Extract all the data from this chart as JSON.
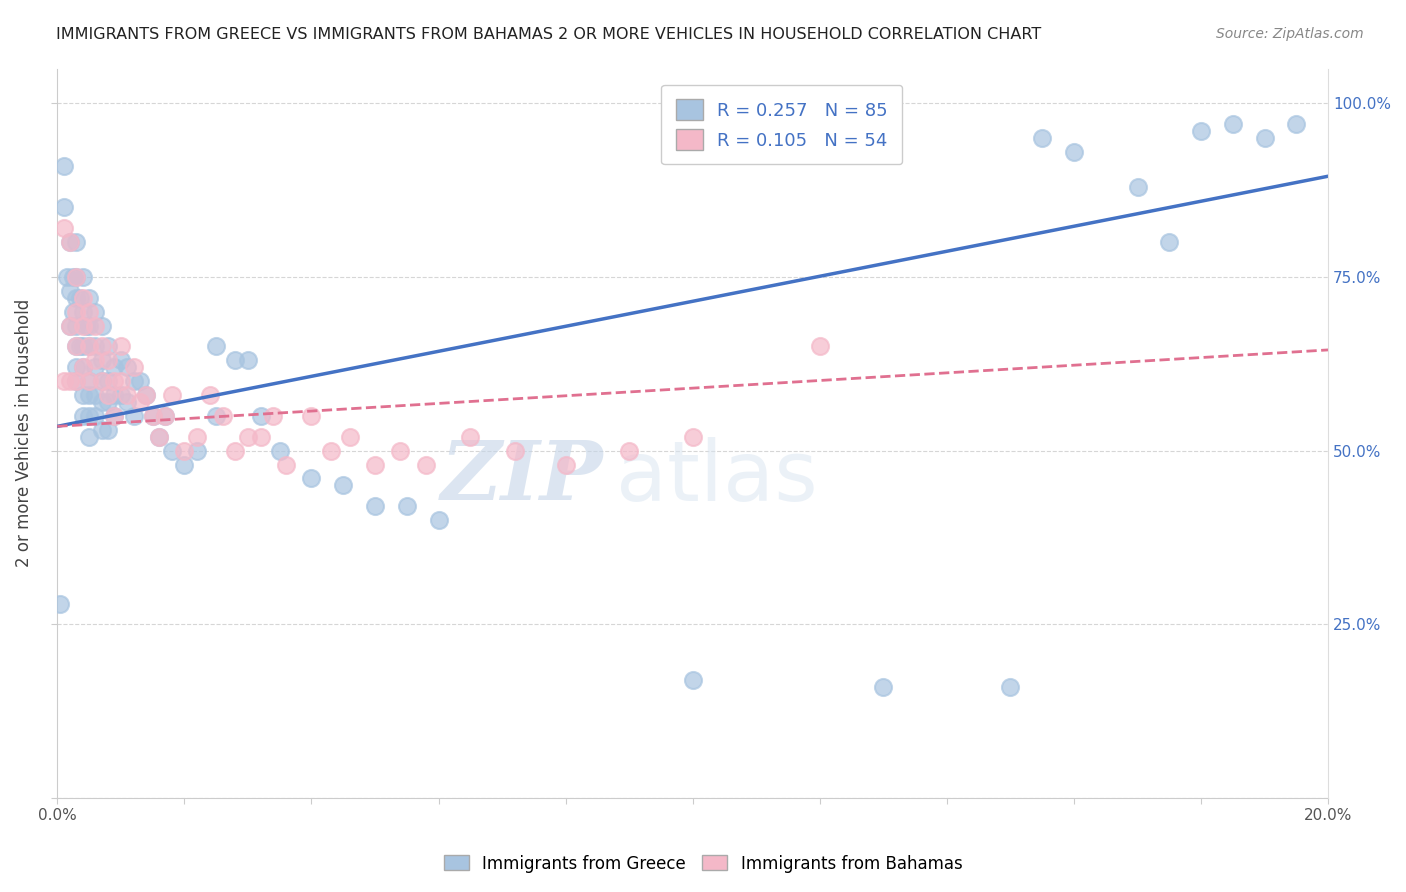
{
  "title": "IMMIGRANTS FROM GREECE VS IMMIGRANTS FROM BAHAMAS 2 OR MORE VEHICLES IN HOUSEHOLD CORRELATION CHART",
  "source": "Source: ZipAtlas.com",
  "ylabel": "2 or more Vehicles in Household",
  "x_min": 0.0,
  "x_max": 0.2,
  "y_min": 0.0,
  "y_max": 1.05,
  "greece_color": "#a8c4e0",
  "bahamas_color": "#f4b8c8",
  "greece_line_color": "#4472c4",
  "bahamas_line_color": "#e07090",
  "greece_R": 0.257,
  "greece_N": 85,
  "bahamas_R": 0.105,
  "bahamas_N": 54,
  "legend_label_greece": "Immigrants from Greece",
  "legend_label_bahamas": "Immigrants from Bahamas",
  "watermark_zip": "ZIP",
  "watermark_atlas": "atlas",
  "greece_line_y0": 0.535,
  "greece_line_y1": 0.895,
  "bahamas_line_y0": 0.535,
  "bahamas_line_y1": 0.645,
  "greece_scatter_x": [
    0.0005,
    0.001,
    0.001,
    0.0015,
    0.002,
    0.002,
    0.002,
    0.0025,
    0.0025,
    0.003,
    0.003,
    0.003,
    0.003,
    0.003,
    0.003,
    0.003,
    0.0035,
    0.0035,
    0.004,
    0.004,
    0.004,
    0.004,
    0.004,
    0.004,
    0.0045,
    0.005,
    0.005,
    0.005,
    0.005,
    0.005,
    0.005,
    0.005,
    0.006,
    0.006,
    0.006,
    0.006,
    0.006,
    0.007,
    0.007,
    0.007,
    0.007,
    0.007,
    0.008,
    0.008,
    0.008,
    0.008,
    0.009,
    0.009,
    0.009,
    0.01,
    0.01,
    0.011,
    0.011,
    0.012,
    0.012,
    0.013,
    0.014,
    0.015,
    0.016,
    0.017,
    0.018,
    0.02,
    0.022,
    0.025,
    0.025,
    0.028,
    0.03,
    0.032,
    0.035,
    0.04,
    0.045,
    0.05,
    0.055,
    0.06,
    0.1,
    0.13,
    0.15,
    0.155,
    0.16,
    0.17,
    0.175,
    0.18,
    0.185,
    0.19,
    0.195
  ],
  "greece_scatter_y": [
    0.28,
    0.91,
    0.85,
    0.75,
    0.8,
    0.73,
    0.68,
    0.75,
    0.7,
    0.8,
    0.75,
    0.72,
    0.68,
    0.65,
    0.62,
    0.6,
    0.72,
    0.65,
    0.75,
    0.7,
    0.65,
    0.62,
    0.58,
    0.55,
    0.68,
    0.72,
    0.68,
    0.65,
    0.6,
    0.58,
    0.55,
    0.52,
    0.7,
    0.65,
    0.62,
    0.58,
    0.55,
    0.68,
    0.63,
    0.6,
    0.57,
    0.53,
    0.65,
    0.6,
    0.57,
    0.53,
    0.62,
    0.58,
    0.55,
    0.63,
    0.58,
    0.62,
    0.57,
    0.6,
    0.55,
    0.6,
    0.58,
    0.55,
    0.52,
    0.55,
    0.5,
    0.48,
    0.5,
    0.65,
    0.55,
    0.63,
    0.63,
    0.55,
    0.5,
    0.46,
    0.45,
    0.42,
    0.42,
    0.4,
    0.17,
    0.16,
    0.16,
    0.95,
    0.93,
    0.88,
    0.8,
    0.96,
    0.97,
    0.95,
    0.97
  ],
  "bahamas_scatter_x": [
    0.001,
    0.001,
    0.002,
    0.002,
    0.002,
    0.003,
    0.003,
    0.003,
    0.003,
    0.004,
    0.004,
    0.004,
    0.005,
    0.005,
    0.005,
    0.006,
    0.006,
    0.007,
    0.007,
    0.008,
    0.008,
    0.009,
    0.009,
    0.01,
    0.01,
    0.011,
    0.012,
    0.013,
    0.014,
    0.015,
    0.016,
    0.017,
    0.018,
    0.02,
    0.022,
    0.024,
    0.026,
    0.028,
    0.03,
    0.032,
    0.034,
    0.036,
    0.04,
    0.043,
    0.046,
    0.05,
    0.054,
    0.058,
    0.065,
    0.072,
    0.08,
    0.09,
    0.1,
    0.12
  ],
  "bahamas_scatter_y": [
    0.6,
    0.82,
    0.8,
    0.68,
    0.6,
    0.75,
    0.7,
    0.65,
    0.6,
    0.72,
    0.68,
    0.62,
    0.7,
    0.65,
    0.6,
    0.68,
    0.63,
    0.65,
    0.6,
    0.63,
    0.58,
    0.6,
    0.55,
    0.65,
    0.6,
    0.58,
    0.62,
    0.57,
    0.58,
    0.55,
    0.52,
    0.55,
    0.58,
    0.5,
    0.52,
    0.58,
    0.55,
    0.5,
    0.52,
    0.52,
    0.55,
    0.48,
    0.55,
    0.5,
    0.52,
    0.48,
    0.5,
    0.48,
    0.52,
    0.5,
    0.48,
    0.5,
    0.52,
    0.65
  ]
}
